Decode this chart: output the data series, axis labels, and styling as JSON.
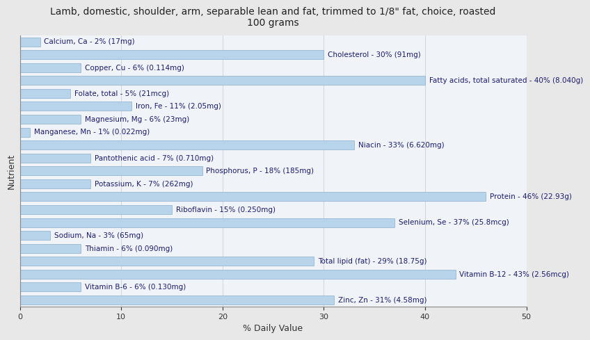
{
  "title": "Lamb, domestic, shoulder, arm, separable lean and fat, trimmed to 1/8\" fat, choice, roasted\n100 grams",
  "xlabel": "% Daily Value",
  "ylabel": "Nutrient",
  "xlim": [
    0,
    50
  ],
  "xticks": [
    0,
    10,
    20,
    30,
    40,
    50
  ],
  "fig_bg_color": "#e8e8e8",
  "plot_bg_color": "#f0f4f8",
  "bar_color": "#b8d4ea",
  "bar_edge_color": "#8ab0cc",
  "text_color": "#1a1a6e",
  "grid_color": "#d0d8e0",
  "title_fontsize": 10,
  "label_fontsize": 7.5,
  "nutrients": [
    {
      "label": "Calcium, Ca - 2% (17mg)",
      "value": 2
    },
    {
      "label": "Cholesterol - 30% (91mg)",
      "value": 30
    },
    {
      "label": "Copper, Cu - 6% (0.114mg)",
      "value": 6
    },
    {
      "label": "Fatty acids, total saturated - 40% (8.040g)",
      "value": 40
    },
    {
      "label": "Folate, total - 5% (21mcg)",
      "value": 5
    },
    {
      "label": "Iron, Fe - 11% (2.05mg)",
      "value": 11
    },
    {
      "label": "Magnesium, Mg - 6% (23mg)",
      "value": 6
    },
    {
      "label": "Manganese, Mn - 1% (0.022mg)",
      "value": 1
    },
    {
      "label": "Niacin - 33% (6.620mg)",
      "value": 33
    },
    {
      "label": "Pantothenic acid - 7% (0.710mg)",
      "value": 7
    },
    {
      "label": "Phosphorus, P - 18% (185mg)",
      "value": 18
    },
    {
      "label": "Potassium, K - 7% (262mg)",
      "value": 7
    },
    {
      "label": "Protein - 46% (22.93g)",
      "value": 46
    },
    {
      "label": "Riboflavin - 15% (0.250mg)",
      "value": 15
    },
    {
      "label": "Selenium, Se - 37% (25.8mcg)",
      "value": 37
    },
    {
      "label": "Sodium, Na - 3% (65mg)",
      "value": 3
    },
    {
      "label": "Thiamin - 6% (0.090mg)",
      "value": 6
    },
    {
      "label": "Total lipid (fat) - 29% (18.75g)",
      "value": 29
    },
    {
      "label": "Vitamin B-12 - 43% (2.56mcg)",
      "value": 43
    },
    {
      "label": "Vitamin B-6 - 6% (0.130mg)",
      "value": 6
    },
    {
      "label": "Zinc, Zn - 31% (4.58mg)",
      "value": 31
    }
  ]
}
